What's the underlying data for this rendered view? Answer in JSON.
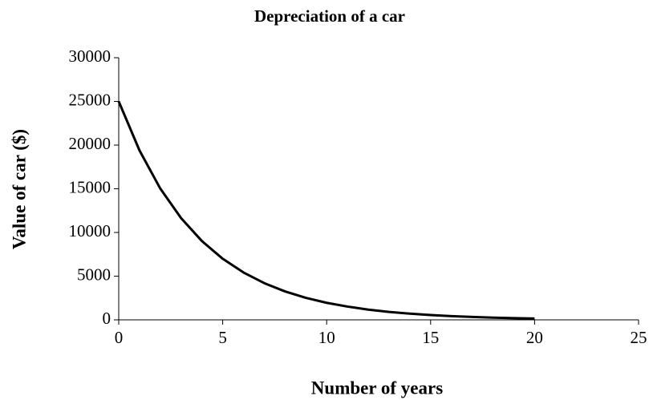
{
  "chart_data": {
    "type": "line",
    "title": "Depreciation of a car",
    "xlabel": "Number of years",
    "ylabel": "Value of car ($)",
    "x": [
      0,
      1,
      2,
      3,
      4,
      5,
      6,
      7,
      8,
      9,
      10,
      11,
      12,
      13,
      14,
      15,
      16,
      17,
      18,
      19,
      20
    ],
    "series": [
      {
        "name": "Value of car",
        "color": "#000000",
        "values": [
          25000,
          19380,
          15020,
          11640,
          9020,
          6990,
          5420,
          4200,
          3250,
          2520,
          1950,
          1520,
          1170,
          910,
          710,
          550,
          420,
          330,
          250,
          200,
          150
        ]
      }
    ],
    "xlim": [
      0,
      25
    ],
    "xticks": [
      0,
      5,
      10,
      15,
      20,
      25
    ],
    "ylim": [
      0,
      30000
    ],
    "yticks": [
      0,
      5000,
      10000,
      15000,
      20000,
      25000,
      30000
    ],
    "grid": false
  }
}
